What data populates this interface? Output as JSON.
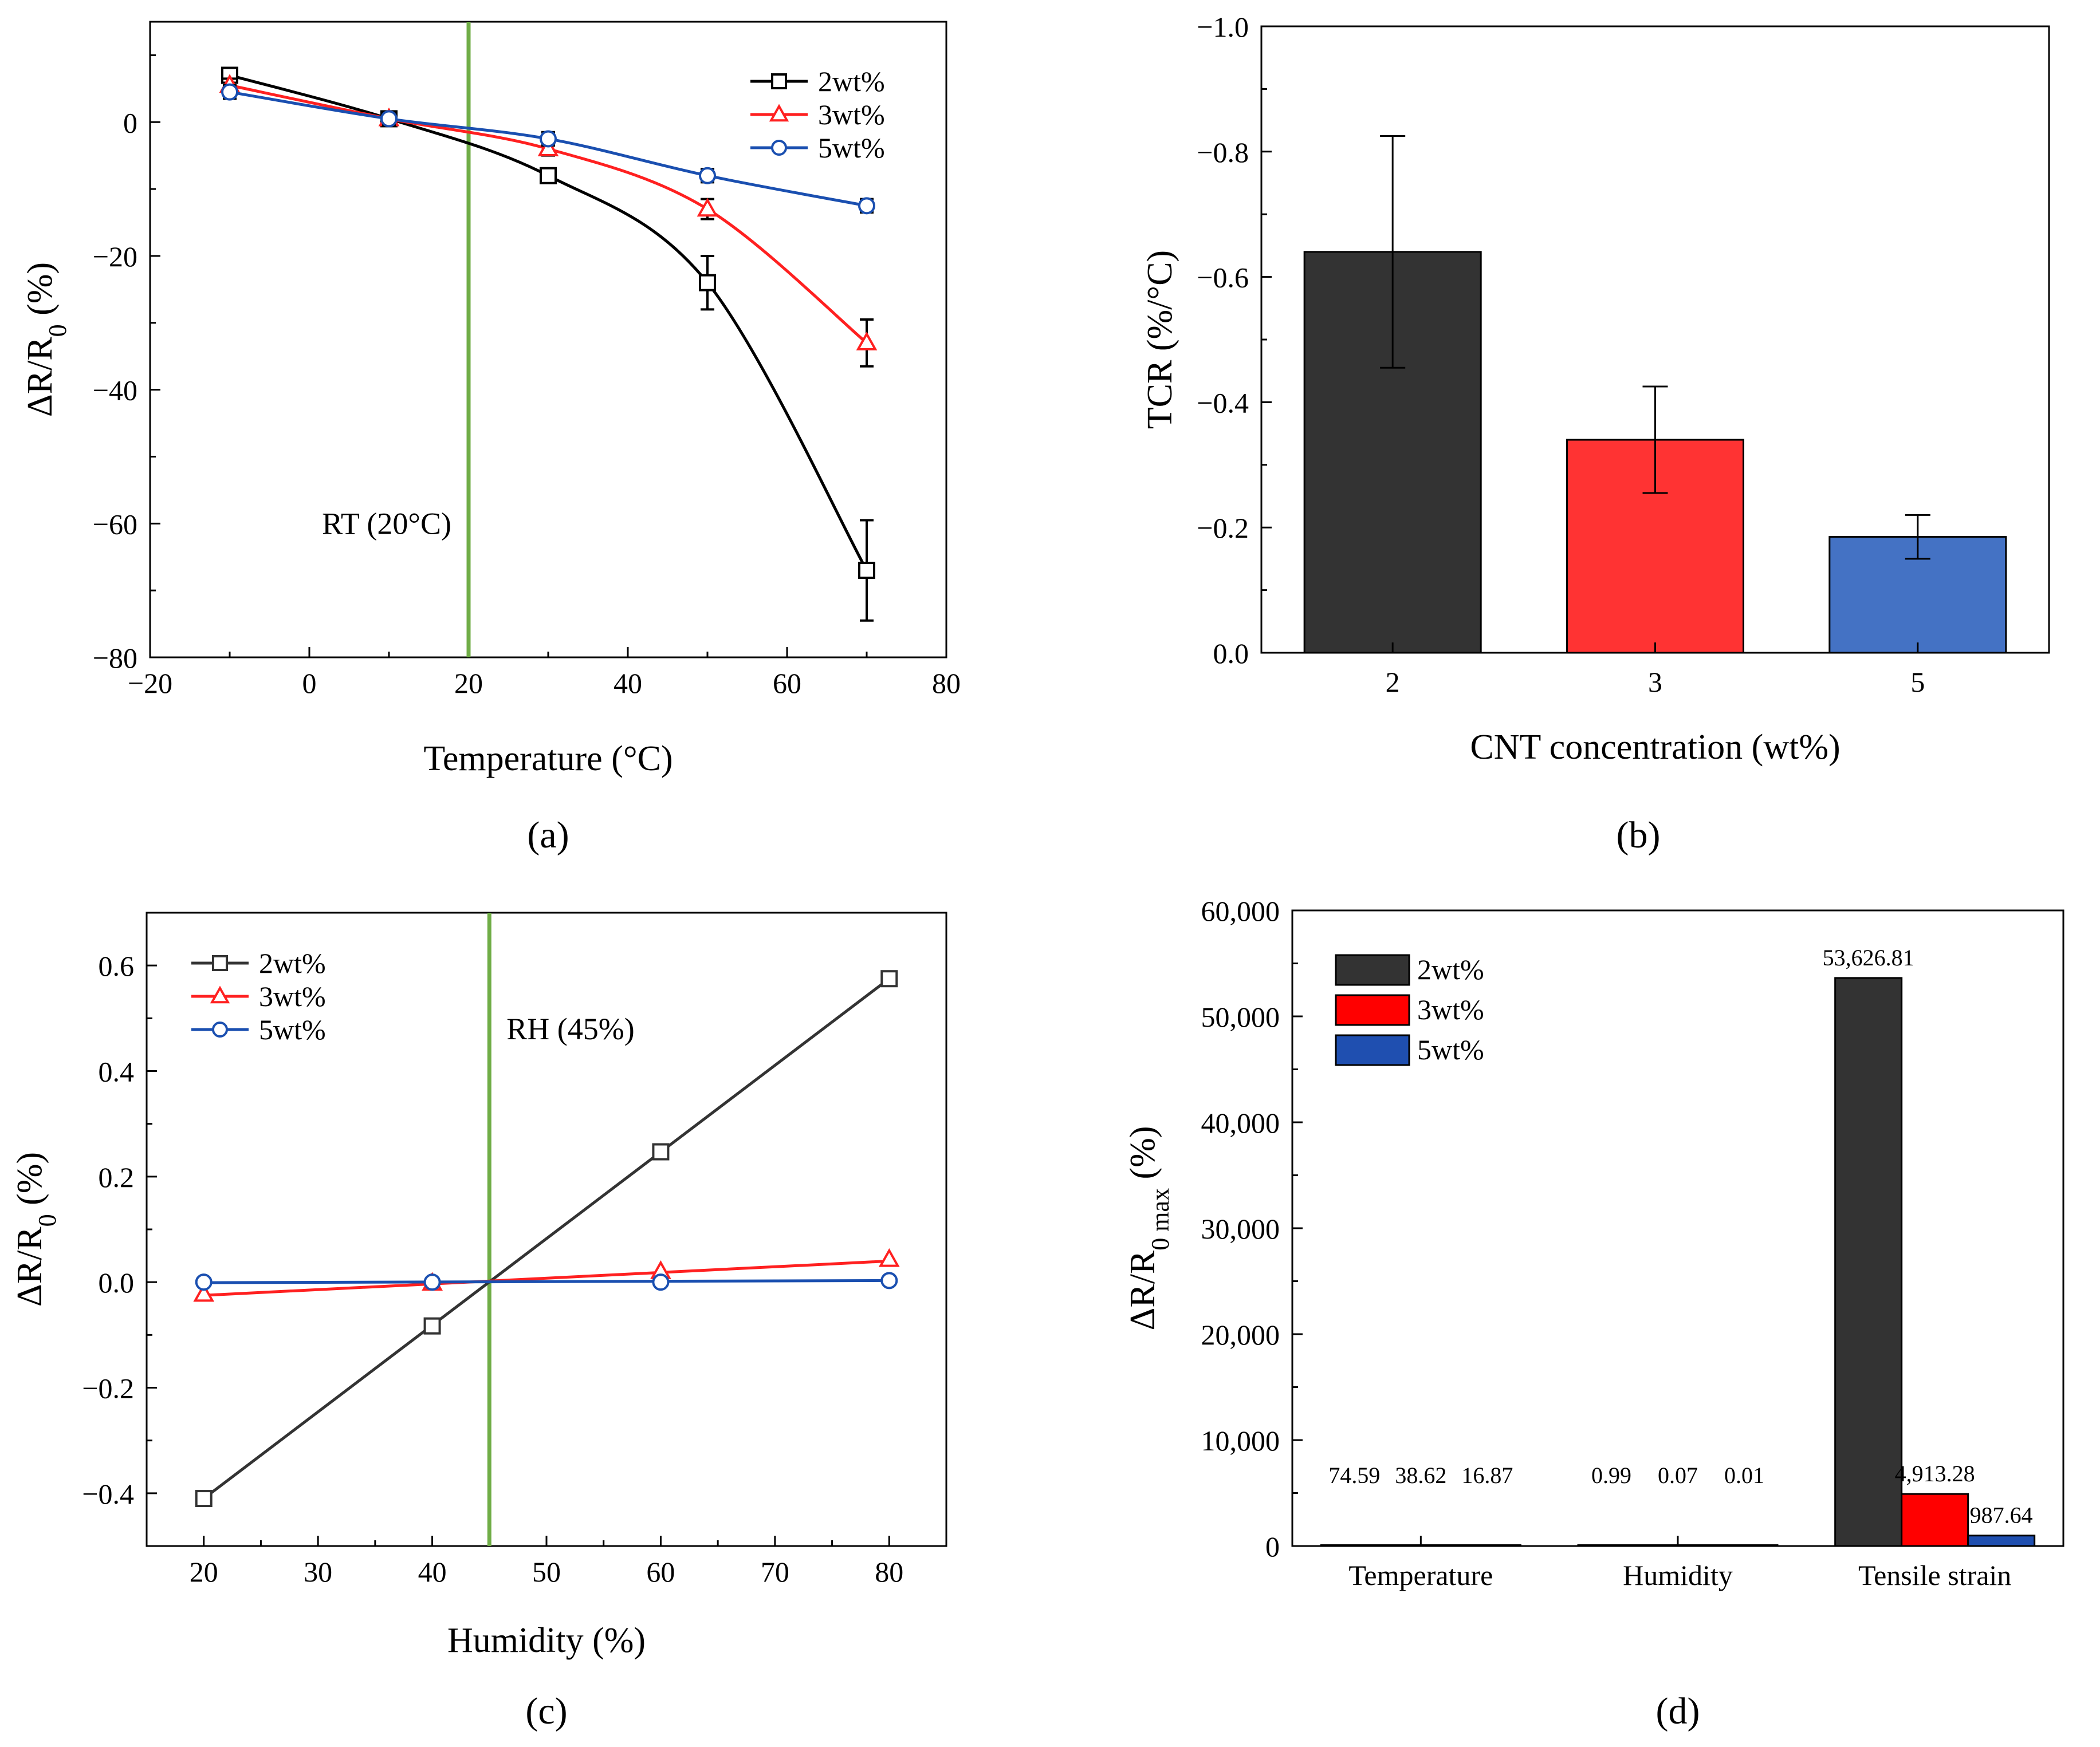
{
  "colors": {
    "black": "#000000",
    "red": "#ff2020",
    "blue": "#1a4fb0",
    "dark_gray": "#333333",
    "bar_black": "#333333",
    "bar_red": "#ff3333",
    "bar_blue": "#4472c4",
    "bar_blue_d": "#1f4fb0",
    "green": "#70ad47"
  },
  "chart_data": [
    {
      "id": "a",
      "panel_label": "(a)",
      "type": "line",
      "xlabel": "Temperature (°C)",
      "ylabel": "ΔR/R0 (%)",
      "xlim": [
        -20,
        80
      ],
      "ylim": [
        -80,
        15
      ],
      "xticks": [
        -20,
        0,
        20,
        40,
        60,
        80
      ],
      "yticks": [
        -80,
        -60,
        -40,
        -20,
        0
      ],
      "x": [
        -10,
        10,
        30,
        50,
        70
      ],
      "series": [
        {
          "name": "2wt%",
          "marker": "square",
          "color": "#000000",
          "values": [
            7,
            0.5,
            -8,
            -24,
            -67
          ],
          "errors": [
            1,
            1,
            1,
            4,
            7.5
          ]
        },
        {
          "name": "3wt%",
          "marker": "triangle",
          "color": "#ff2020",
          "values": [
            5.5,
            0.5,
            -4,
            -13,
            -33
          ],
          "errors": [
            1,
            1,
            1,
            1.5,
            3.5
          ]
        },
        {
          "name": "5wt%",
          "marker": "circle",
          "color": "#1a4fb0",
          "values": [
            4.5,
            0.5,
            -2.5,
            -8,
            -12.5
          ],
          "errors": [
            1,
            1,
            1,
            1,
            1
          ]
        }
      ],
      "vline": {
        "x": 20,
        "label": "RT (20°C)"
      }
    },
    {
      "id": "b",
      "panel_label": "(b)",
      "type": "bar",
      "xlabel": "CNT concentration (wt%)",
      "ylabel": "TCR (%/°C)",
      "ylim": [
        0,
        -1.0
      ],
      "yticks": [
        0.0,
        -0.2,
        -0.4,
        -0.6,
        -0.8,
        -1.0
      ],
      "categories": [
        "2",
        "3",
        "5"
      ],
      "values": [
        -0.64,
        -0.34,
        -0.185
      ],
      "errors": [
        0.185,
        0.085,
        0.035
      ],
      "bar_colors": [
        "#333333",
        "#ff3333",
        "#4472c4"
      ]
    },
    {
      "id": "c",
      "panel_label": "(c)",
      "type": "line",
      "xlabel": "Humidity (%)",
      "ylabel": "ΔR/R0 (%)",
      "xlim": [
        15,
        85
      ],
      "ylim": [
        -0.5,
        0.7
      ],
      "xticks": [
        20,
        30,
        40,
        50,
        60,
        70,
        80
      ],
      "yticks": [
        -0.4,
        -0.2,
        0.0,
        0.2,
        0.4,
        0.6
      ],
      "x": [
        20,
        40,
        60,
        80
      ],
      "series": [
        {
          "name": "2wt%",
          "marker": "square",
          "color": "#333333",
          "values": [
            -0.41,
            -0.083,
            0.247,
            0.575
          ]
        },
        {
          "name": "3wt%",
          "marker": "triangle",
          "color": "#ff2020",
          "values": [
            -0.023,
            -0.002,
            0.02,
            0.043
          ]
        },
        {
          "name": "5wt%",
          "marker": "circle",
          "color": "#1a4fb0",
          "values": [
            0.0,
            0.0,
            0.0,
            0.003
          ]
        }
      ],
      "fit_lines": [
        {
          "x": [
            20,
            80
          ],
          "y": [
            -0.41,
            0.575
          ]
        },
        {
          "x": [
            20,
            80
          ],
          "y": [
            -0.025,
            0.04
          ]
        },
        {
          "x": [
            20,
            80
          ],
          "y": [
            -0.001,
            0.003
          ]
        }
      ],
      "vline": {
        "x": 45,
        "label": "RH (45%)"
      }
    },
    {
      "id": "d",
      "panel_label": "(d)",
      "type": "bar",
      "ylabel": "ΔR/R0 max (%)",
      "ylim": [
        0,
        60000
      ],
      "yticks": [
        0,
        10000,
        20000,
        30000,
        40000,
        50000,
        60000
      ],
      "ytick_labels": [
        "0",
        "10,000",
        "20,000",
        "30,000",
        "40,000",
        "50,000",
        "60,000"
      ],
      "categories": [
        "Temperature",
        "Humidity",
        "Tensile strain"
      ],
      "series": [
        {
          "name": "2wt%",
          "color": "#333333",
          "values": [
            74.59,
            0.99,
            53626.81
          ],
          "labels": [
            "74.59",
            "0.99",
            "53,626.81"
          ]
        },
        {
          "name": "3wt%",
          "color": "#ff0000",
          "values": [
            38.62,
            0.07,
            4913.28
          ],
          "labels": [
            "38.62",
            "0.07",
            "4,913.28"
          ]
        },
        {
          "name": "5wt%",
          "color": "#1f4fb0",
          "values": [
            16.87,
            0.01,
            987.64
          ],
          "labels": [
            "16.87",
            "0.01",
            "987.64"
          ]
        }
      ]
    }
  ]
}
